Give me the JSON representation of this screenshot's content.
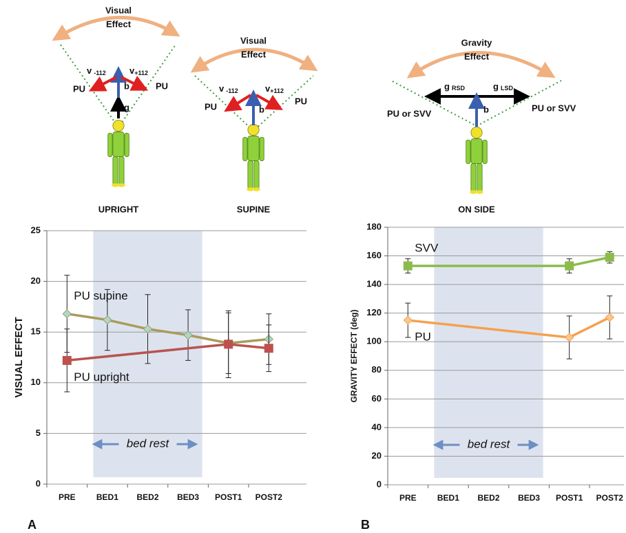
{
  "diagrams": [
    {
      "effect": [
        "Visual",
        "Effect"
      ],
      "left_vector": {
        "symbol": "v",
        "sub": "-112"
      },
      "right_vector": {
        "symbol": "v",
        "sub": "+112"
      },
      "left_label": "PU",
      "right_label": "PU",
      "body_vector": "b",
      "gravity_vector": "g",
      "caption": "UPRIGHT"
    },
    {
      "effect": [
        "Visual",
        "Effect"
      ],
      "left_vector": {
        "symbol": "v",
        "sub": "-112"
      },
      "right_vector": {
        "symbol": "v",
        "sub": "+112"
      },
      "left_label": "PU",
      "right_label": "PU",
      "body_vector": "b",
      "caption": "SUPINE"
    },
    {
      "effect": [
        "Gravity",
        "Effect"
      ],
      "left_vector": {
        "symbol": "g",
        "sub": "RSD"
      },
      "right_vector": {
        "symbol": "g",
        "sub": "LSD"
      },
      "left_label": "PU or SVV",
      "right_label": "PU or SVV",
      "body_vector": "b",
      "caption": "ON SIDE"
    }
  ],
  "chart_data": [
    {
      "type": "line",
      "panel": "A",
      "ylabel": "VISUAL EFFECT",
      "categories": [
        "PRE",
        "BED1",
        "BED2",
        "BED3",
        "POST1",
        "POST2"
      ],
      "ylim": [
        0,
        25
      ],
      "yticks": [
        0,
        5,
        10,
        15,
        20,
        25
      ],
      "grid": true,
      "shaded": [
        "BED1",
        "BED3"
      ],
      "shade_color": "#dde3ee",
      "annotation": "bed rest",
      "series": [
        {
          "name": "PU supine",
          "color": "#a89c5c",
          "marker": "diamond",
          "marker_color": "#a8d8d0",
          "values": [
            16.8,
            16.2,
            15.3,
            14.7,
            13.9,
            14.3
          ],
          "errors": [
            3.8,
            3.0,
            3.4,
            2.5,
            3.0,
            2.5
          ]
        },
        {
          "name": "PU upright",
          "color": "#b85450",
          "marker": "square",
          "marker_color": "#c0504d",
          "x": [
            "PRE",
            "POST1",
            "POST2"
          ],
          "values": [
            12.2,
            13.8,
            13.4
          ],
          "errors": [
            3.1,
            3.3,
            2.3
          ]
        }
      ]
    },
    {
      "type": "line",
      "panel": "B",
      "ylabel": "GRAVITY EFFECT (deg)",
      "categories": [
        "PRE",
        "BED1",
        "BED2",
        "BED3",
        "POST1",
        "POST2"
      ],
      "ylim": [
        0,
        180
      ],
      "yticks": [
        0,
        20,
        40,
        60,
        80,
        100,
        120,
        140,
        160,
        180
      ],
      "grid": true,
      "shaded": [
        "BED1",
        "BED3"
      ],
      "shade_color": "#dde3ee",
      "annotation": "bed rest",
      "series": [
        {
          "name": "SVV",
          "color": "#8cbb4c",
          "marker": "square",
          "marker_color": "#8cbb4c",
          "x": [
            "PRE",
            "POST1",
            "POST2"
          ],
          "values": [
            153,
            153,
            159
          ],
          "errors": [
            5,
            5,
            4
          ]
        },
        {
          "name": "PU",
          "color": "#f5a050",
          "marker": "diamond",
          "marker_color": "#f5c890",
          "x": [
            "PRE",
            "POST1",
            "POST2"
          ],
          "values": [
            115,
            103,
            117
          ],
          "errors": [
            12,
            15,
            15
          ]
        }
      ]
    }
  ]
}
